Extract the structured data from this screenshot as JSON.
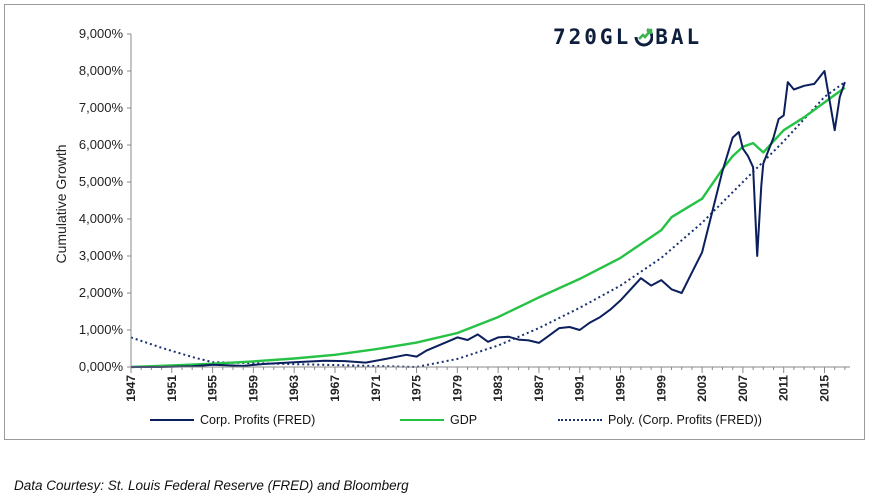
{
  "logo": {
    "left": "720GL",
    "right": "BAL",
    "mark": "globe-arrow-icon"
  },
  "footnote": "Data Courtesy: St. Louis Federal Reserve (FRED) and Bloomberg",
  "chart_data": {
    "type": "line",
    "title": "",
    "xlabel": "",
    "ylabel": "Cumulative Growth",
    "xlim": [
      1947,
      2017.5
    ],
    "ylim": [
      0,
      9000
    ],
    "yticks": [
      0,
      1000,
      2000,
      3000,
      4000,
      5000,
      6000,
      7000,
      8000,
      9000
    ],
    "ytick_labels": [
      "0,000%",
      "1,000%",
      "2,000%",
      "3,000%",
      "4,000%",
      "5,000%",
      "6,000%",
      "7,000%",
      "8,000%",
      "9,000%"
    ],
    "xticks": [
      1947,
      1951,
      1955,
      1959,
      1963,
      1967,
      1971,
      1975,
      1979,
      1983,
      1987,
      1991,
      1995,
      1999,
      2003,
      2007,
      2011,
      2015
    ],
    "grid": false,
    "legend_position": "bottom",
    "series": [
      {
        "name": "Corp. Profits (FRED)",
        "color": "#0b1f5c",
        "style": "solid",
        "points": [
          [
            1947,
            0
          ],
          [
            1950,
            0
          ],
          [
            1953,
            20
          ],
          [
            1955,
            60
          ],
          [
            1958,
            30
          ],
          [
            1960,
            80
          ],
          [
            1963,
            130
          ],
          [
            1966,
            170
          ],
          [
            1968,
            160
          ],
          [
            1970,
            120
          ],
          [
            1972,
            220
          ],
          [
            1974,
            330
          ],
          [
            1975,
            280
          ],
          [
            1976,
            450
          ],
          [
            1978,
            680
          ],
          [
            1979,
            800
          ],
          [
            1980,
            730
          ],
          [
            1981,
            880
          ],
          [
            1982,
            680
          ],
          [
            1983,
            800
          ],
          [
            1984,
            820
          ],
          [
            1985,
            740
          ],
          [
            1986,
            720
          ],
          [
            1987,
            650
          ],
          [
            1988,
            850
          ],
          [
            1989,
            1050
          ],
          [
            1990,
            1080
          ],
          [
            1991,
            1000
          ],
          [
            1992,
            1200
          ],
          [
            1993,
            1350
          ],
          [
            1994,
            1550
          ],
          [
            1995,
            1800
          ],
          [
            1996,
            2100
          ],
          [
            1997,
            2400
          ],
          [
            1998,
            2200
          ],
          [
            1999,
            2350
          ],
          [
            2000,
            2100
          ],
          [
            2001,
            2000
          ],
          [
            2002,
            2550
          ],
          [
            2003,
            3100
          ],
          [
            2004,
            4200
          ],
          [
            2005,
            5300
          ],
          [
            2006,
            6200
          ],
          [
            2006.6,
            6350
          ],
          [
            2007,
            5900
          ],
          [
            2007.5,
            5700
          ],
          [
            2008,
            5400
          ],
          [
            2008.4,
            3000
          ],
          [
            2008.8,
            4900
          ],
          [
            2009,
            5500
          ],
          [
            2010,
            6200
          ],
          [
            2010.5,
            6700
          ],
          [
            2011,
            6800
          ],
          [
            2011.4,
            7700
          ],
          [
            2012,
            7500
          ],
          [
            2013,
            7600
          ],
          [
            2014,
            7650
          ],
          [
            2015,
            8000
          ],
          [
            2015.5,
            7200
          ],
          [
            2016,
            6400
          ],
          [
            2016.5,
            7300
          ],
          [
            2017,
            7700
          ]
        ]
      },
      {
        "name": "GDP",
        "color": "#26c246",
        "style": "solid",
        "points": [
          [
            1947,
            0
          ],
          [
            1951,
            40
          ],
          [
            1955,
            90
          ],
          [
            1959,
            150
          ],
          [
            1963,
            230
          ],
          [
            1967,
            330
          ],
          [
            1971,
            480
          ],
          [
            1975,
            660
          ],
          [
            1979,
            920
          ],
          [
            1983,
            1350
          ],
          [
            1987,
            1880
          ],
          [
            1991,
            2380
          ],
          [
            1995,
            2950
          ],
          [
            1999,
            3700
          ],
          [
            2000,
            4050
          ],
          [
            2003,
            4550
          ],
          [
            2005,
            5350
          ],
          [
            2006,
            5700
          ],
          [
            2007,
            5950
          ],
          [
            2008,
            6050
          ],
          [
            2009,
            5800
          ],
          [
            2010,
            6100
          ],
          [
            2011,
            6400
          ],
          [
            2013,
            6750
          ],
          [
            2015,
            7150
          ],
          [
            2017,
            7550
          ]
        ]
      },
      {
        "name": "Poly. (Corp. Profits (FRED))",
        "color": "#1a3070",
        "style": "dotted",
        "points": [
          [
            1947,
            800
          ],
          [
            1950,
            520
          ],
          [
            1953,
            270
          ],
          [
            1955,
            130
          ],
          [
            1975,
            0
          ],
          [
            1979,
            220
          ],
          [
            1983,
            580
          ],
          [
            1987,
            1050
          ],
          [
            1991,
            1600
          ],
          [
            1995,
            2200
          ],
          [
            1999,
            2950
          ],
          [
            2003,
            3900
          ],
          [
            2007,
            5000
          ],
          [
            2011,
            6100
          ],
          [
            2015,
            7300
          ],
          [
            2017,
            7700
          ]
        ]
      }
    ]
  }
}
